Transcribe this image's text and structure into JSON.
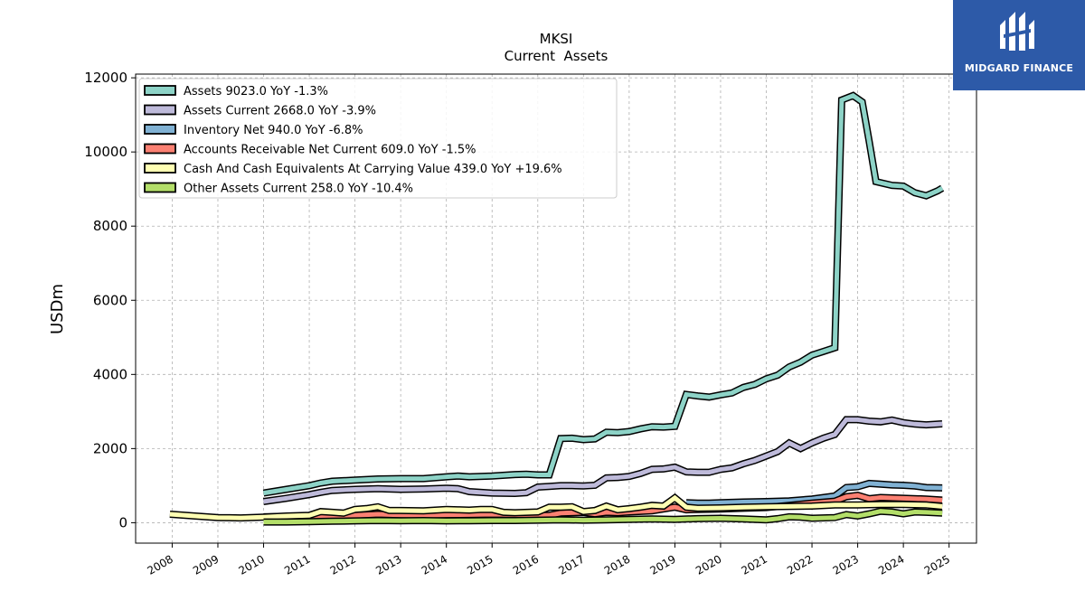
{
  "brand": {
    "name": "MIDGARD FINANCE",
    "bg": "#2d5aa8"
  },
  "chart_data": {
    "type": "line",
    "title": "MKSI",
    "subtitle": "Current  Assets",
    "ylabel": "USDm",
    "xlabel": "",
    "xlim": [
      2007.2,
      2025.6
    ],
    "ylim": [
      -550,
      12100
    ],
    "yticks": [
      0,
      2000,
      4000,
      6000,
      8000,
      10000,
      12000
    ],
    "xticks": [
      "2008",
      "2009",
      "2010",
      "2011",
      "2012",
      "2013",
      "2014",
      "2015",
      "2016",
      "2017",
      "2018",
      "2019",
      "2020",
      "2021",
      "2022",
      "2023",
      "2024",
      "2025"
    ],
    "grid": true,
    "legend_position": "top-left",
    "series": [
      {
        "name": "Assets  9023.0 YoY -1.3%",
        "color": "#8dd3c7",
        "points": [
          [
            2010.0,
            800
          ],
          [
            2010.5,
            900
          ],
          [
            2011.0,
            1000
          ],
          [
            2011.25,
            1070
          ],
          [
            2011.5,
            1120
          ],
          [
            2012.0,
            1150
          ],
          [
            2012.5,
            1180
          ],
          [
            2013.0,
            1190
          ],
          [
            2013.5,
            1190
          ],
          [
            2014.0,
            1240
          ],
          [
            2014.25,
            1260
          ],
          [
            2014.5,
            1240
          ],
          [
            2015.0,
            1260
          ],
          [
            2015.5,
            1300
          ],
          [
            2015.75,
            1310
          ],
          [
            2016.0,
            1290
          ],
          [
            2016.25,
            1290
          ],
          [
            2016.5,
            2270
          ],
          [
            2016.75,
            2280
          ],
          [
            2017.0,
            2240
          ],
          [
            2017.25,
            2260
          ],
          [
            2017.5,
            2440
          ],
          [
            2017.75,
            2430
          ],
          [
            2018.0,
            2460
          ],
          [
            2018.25,
            2530
          ],
          [
            2018.5,
            2590
          ],
          [
            2018.75,
            2580
          ],
          [
            2019.0,
            2600
          ],
          [
            2019.25,
            3460
          ],
          [
            2019.5,
            3420
          ],
          [
            2019.75,
            3390
          ],
          [
            2020.0,
            3450
          ],
          [
            2020.25,
            3500
          ],
          [
            2020.5,
            3650
          ],
          [
            2020.75,
            3730
          ],
          [
            2021.0,
            3880
          ],
          [
            2021.25,
            3980
          ],
          [
            2021.5,
            4200
          ],
          [
            2021.75,
            4330
          ],
          [
            2022.0,
            4520
          ],
          [
            2022.25,
            4620
          ],
          [
            2022.5,
            4720
          ],
          [
            2022.65,
            11400
          ],
          [
            2022.9,
            11520
          ],
          [
            2023.1,
            11350
          ],
          [
            2023.25,
            10300
          ],
          [
            2023.4,
            9200
          ],
          [
            2023.75,
            9100
          ],
          [
            2024.0,
            9080
          ],
          [
            2024.25,
            8900
          ],
          [
            2024.5,
            8820
          ],
          [
            2024.75,
            8950
          ],
          [
            2024.85,
            9023
          ]
        ]
      },
      {
        "name": "Assets Current  2668.0 YoY -3.9%",
        "color": "#bebada",
        "points": [
          [
            2010.0,
            570
          ],
          [
            2010.5,
            660
          ],
          [
            2011.0,
            760
          ],
          [
            2011.25,
            820
          ],
          [
            2011.5,
            870
          ],
          [
            2012.0,
            900
          ],
          [
            2012.5,
            920
          ],
          [
            2013.0,
            900
          ],
          [
            2013.5,
            910
          ],
          [
            2014.0,
            930
          ],
          [
            2014.25,
            920
          ],
          [
            2014.5,
            840
          ],
          [
            2015.0,
            800
          ],
          [
            2015.5,
            790
          ],
          [
            2015.75,
            810
          ],
          [
            2016.0,
            960
          ],
          [
            2016.25,
            980
          ],
          [
            2016.5,
            1000
          ],
          [
            2016.75,
            1000
          ],
          [
            2017.0,
            990
          ],
          [
            2017.25,
            1010
          ],
          [
            2017.5,
            1210
          ],
          [
            2017.75,
            1220
          ],
          [
            2018.0,
            1250
          ],
          [
            2018.25,
            1330
          ],
          [
            2018.5,
            1440
          ],
          [
            2018.75,
            1450
          ],
          [
            2019.0,
            1500
          ],
          [
            2019.25,
            1370
          ],
          [
            2019.5,
            1360
          ],
          [
            2019.75,
            1360
          ],
          [
            2020.0,
            1440
          ],
          [
            2020.25,
            1480
          ],
          [
            2020.5,
            1590
          ],
          [
            2020.75,
            1680
          ],
          [
            2021.0,
            1800
          ],
          [
            2021.25,
            1920
          ],
          [
            2021.5,
            2150
          ],
          [
            2021.75,
            2000
          ],
          [
            2022.0,
            2150
          ],
          [
            2022.25,
            2280
          ],
          [
            2022.5,
            2380
          ],
          [
            2022.75,
            2780
          ],
          [
            2023.0,
            2780
          ],
          [
            2023.25,
            2740
          ],
          [
            2023.5,
            2720
          ],
          [
            2023.75,
            2770
          ],
          [
            2024.0,
            2700
          ],
          [
            2024.25,
            2660
          ],
          [
            2024.5,
            2640
          ],
          [
            2024.85,
            2668
          ]
        ]
      },
      {
        "name": "Inventory Net  940.0 YoY -6.8%",
        "color": "#80b1d3",
        "points": [
          [
            2019.25,
            540
          ],
          [
            2019.5,
            530
          ],
          [
            2019.75,
            530
          ],
          [
            2020.0,
            540
          ],
          [
            2020.5,
            560
          ],
          [
            2021.0,
            570
          ],
          [
            2021.5,
            590
          ],
          [
            2022.0,
            640
          ],
          [
            2022.5,
            720
          ],
          [
            2022.75,
            950
          ],
          [
            2023.0,
            970
          ],
          [
            2023.25,
            1060
          ],
          [
            2023.5,
            1040
          ],
          [
            2023.75,
            1020
          ],
          [
            2024.0,
            1010
          ],
          [
            2024.25,
            990
          ],
          [
            2024.5,
            950
          ],
          [
            2024.85,
            940
          ]
        ]
      },
      {
        "name": "Accounts Receivable Net Current  609.0 YoY -1.5%",
        "color": "#fb8072",
        "points": [
          [
            2010.0,
            160
          ],
          [
            2010.5,
            170
          ],
          [
            2011.0,
            180
          ],
          [
            2011.5,
            185
          ],
          [
            2012.0,
            200
          ],
          [
            2012.5,
            230
          ],
          [
            2013.0,
            210
          ],
          [
            2013.5,
            200
          ],
          [
            2014.0,
            215
          ],
          [
            2014.5,
            220
          ],
          [
            2015.0,
            230
          ],
          [
            2015.5,
            220
          ],
          [
            2016.0,
            200
          ],
          [
            2016.25,
            200
          ],
          [
            2016.5,
            260
          ],
          [
            2017.0,
            280
          ],
          [
            2017.25,
            240
          ],
          [
            2017.5,
            280
          ],
          [
            2017.75,
            270
          ],
          [
            2018.0,
            290
          ],
          [
            2018.5,
            320
          ],
          [
            2019.0,
            420
          ],
          [
            2019.25,
            350
          ],
          [
            2019.5,
            360
          ],
          [
            2020.0,
            370
          ],
          [
            2020.5,
            390
          ],
          [
            2021.0,
            410
          ],
          [
            2021.5,
            470
          ],
          [
            2022.0,
            530
          ],
          [
            2022.5,
            580
          ],
          [
            2022.75,
            700
          ],
          [
            2023.0,
            740
          ],
          [
            2023.25,
            650
          ],
          [
            2023.5,
            680
          ],
          [
            2024.0,
            660
          ],
          [
            2024.5,
            640
          ],
          [
            2024.85,
            609
          ]
        ]
      },
      {
        "name": "Cash And Cash Equivalents At Carrying Value  439.0 YoY +19.6%",
        "color": "#ffffb3",
        "points": [
          [
            2007.95,
            230
          ],
          [
            2008.5,
            180
          ],
          [
            2009.0,
            140
          ],
          [
            2009.5,
            130
          ],
          [
            2010.0,
            150
          ],
          [
            2010.5,
            180
          ],
          [
            2011.0,
            200
          ],
          [
            2011.25,
            300
          ],
          [
            2011.5,
            280
          ],
          [
            2011.75,
            260
          ],
          [
            2012.0,
            360
          ],
          [
            2012.25,
            380
          ],
          [
            2012.5,
            430
          ],
          [
            2012.75,
            330
          ],
          [
            2013.0,
            330
          ],
          [
            2013.5,
            320
          ],
          [
            2014.0,
            360
          ],
          [
            2014.25,
            350
          ],
          [
            2014.5,
            340
          ],
          [
            2014.75,
            360
          ],
          [
            2015.0,
            360
          ],
          [
            2015.25,
            280
          ],
          [
            2015.5,
            270
          ],
          [
            2016.0,
            290
          ],
          [
            2016.25,
            420
          ],
          [
            2016.5,
            420
          ],
          [
            2016.75,
            430
          ],
          [
            2017.0,
            300
          ],
          [
            2017.25,
            330
          ],
          [
            2017.5,
            450
          ],
          [
            2017.75,
            350
          ],
          [
            2018.0,
            380
          ],
          [
            2018.25,
            420
          ],
          [
            2018.5,
            470
          ],
          [
            2018.75,
            450
          ],
          [
            2019.0,
            670
          ],
          [
            2019.25,
            420
          ],
          [
            2019.5,
            390
          ],
          [
            2020.0,
            400
          ],
          [
            2020.5,
            420
          ],
          [
            2021.0,
            430
          ],
          [
            2021.5,
            440
          ],
          [
            2022.0,
            450
          ],
          [
            2022.5,
            480
          ],
          [
            2023.0,
            480
          ],
          [
            2023.5,
            490
          ],
          [
            2024.0,
            490
          ],
          [
            2024.5,
            480
          ],
          [
            2024.85,
            439
          ]
        ]
      },
      {
        "name": "Other Assets Current  258.0 YoY -10.4%",
        "color": "#b3de69",
        "points": [
          [
            2010.0,
            20
          ],
          [
            2010.5,
            20
          ],
          [
            2011.0,
            30
          ],
          [
            2011.5,
            40
          ],
          [
            2012.0,
            50
          ],
          [
            2012.5,
            60
          ],
          [
            2013.0,
            55
          ],
          [
            2013.5,
            60
          ],
          [
            2014.0,
            50
          ],
          [
            2014.5,
            55
          ],
          [
            2015.0,
            60
          ],
          [
            2015.5,
            60
          ],
          [
            2016.0,
            70
          ],
          [
            2016.5,
            80
          ],
          [
            2017.0,
            70
          ],
          [
            2017.5,
            80
          ],
          [
            2018.0,
            90
          ],
          [
            2018.5,
            100
          ],
          [
            2019.0,
            90
          ],
          [
            2019.5,
            110
          ],
          [
            2020.0,
            120
          ],
          [
            2020.5,
            100
          ],
          [
            2021.0,
            80
          ],
          [
            2021.25,
            110
          ],
          [
            2021.5,
            160
          ],
          [
            2021.75,
            150
          ],
          [
            2022.0,
            120
          ],
          [
            2022.5,
            140
          ],
          [
            2022.75,
            220
          ],
          [
            2023.0,
            180
          ],
          [
            2023.25,
            240
          ],
          [
            2023.5,
            310
          ],
          [
            2023.75,
            290
          ],
          [
            2024.0,
            240
          ],
          [
            2024.25,
            290
          ],
          [
            2024.5,
            280
          ],
          [
            2024.85,
            258
          ]
        ]
      }
    ]
  }
}
